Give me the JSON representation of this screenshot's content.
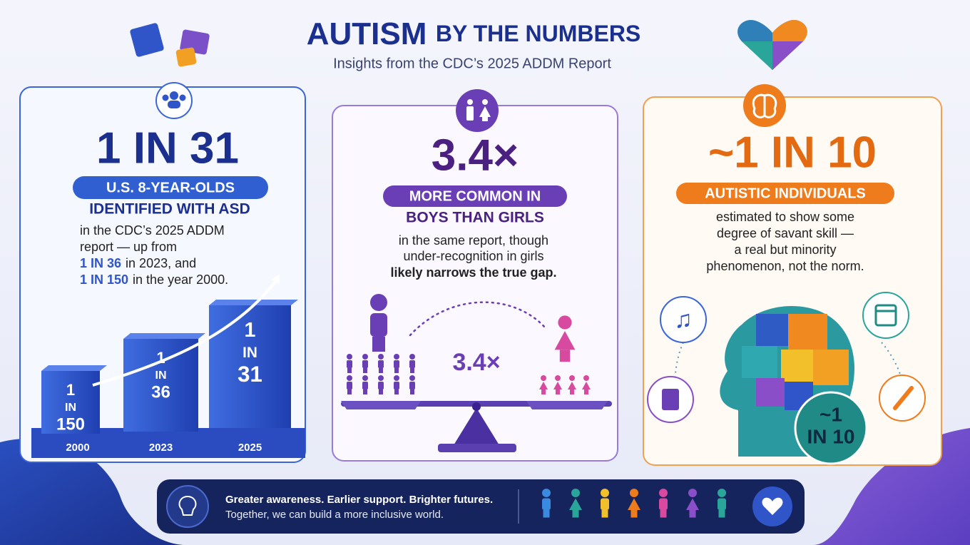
{
  "header": {
    "title_main": "AUTISM",
    "title_rest": "BY THE NUMBERS",
    "subtitle": "Insights from the CDC’s 2025 ADDM Report"
  },
  "cards": [
    {
      "stat": "1 IN 31",
      "badge": "U.S. 8-YEAR-OLDS",
      "headline": "IDENTIFIED WITH ASD",
      "body": [
        "in the CDC’s 2025 ADDM",
        "report — up from"
      ],
      "history": [
        {
          "em": "1 IN 36",
          "text": "in 2023, and"
        },
        {
          "em": "1 IN 150",
          "text": "in the year 2000."
        }
      ],
      "bars": [
        {
          "label": [
            "1",
            "IN",
            "150"
          ],
          "year": "2000"
        },
        {
          "label": [
            "1",
            "IN",
            "36"
          ],
          "year": "2023"
        },
        {
          "label": [
            "1",
            "IN",
            "31"
          ],
          "year": "2025"
        }
      ]
    },
    {
      "stat": "3.4×",
      "badge": "MORE COMMON IN",
      "headline": "BOYS THAN GIRLS",
      "body": [
        "in the same report, though",
        "under-recognition in girls",
        "likely narrows the true gap."
      ],
      "scale_label": "3.4×"
    },
    {
      "stat": "~1 IN 10",
      "badge": "AUTISTIC INDIVIDUALS",
      "body": [
        "estimated to show some",
        "degree of savant skill —",
        "a real but minority",
        "phenomenon, not the norm."
      ],
      "head_label": [
        "~1",
        "IN 10"
      ]
    }
  ],
  "footer": {
    "line1": "Greater awareness. Earlier support. Brighter futures.",
    "line2": "Together, we can build a more inclusive world."
  }
}
